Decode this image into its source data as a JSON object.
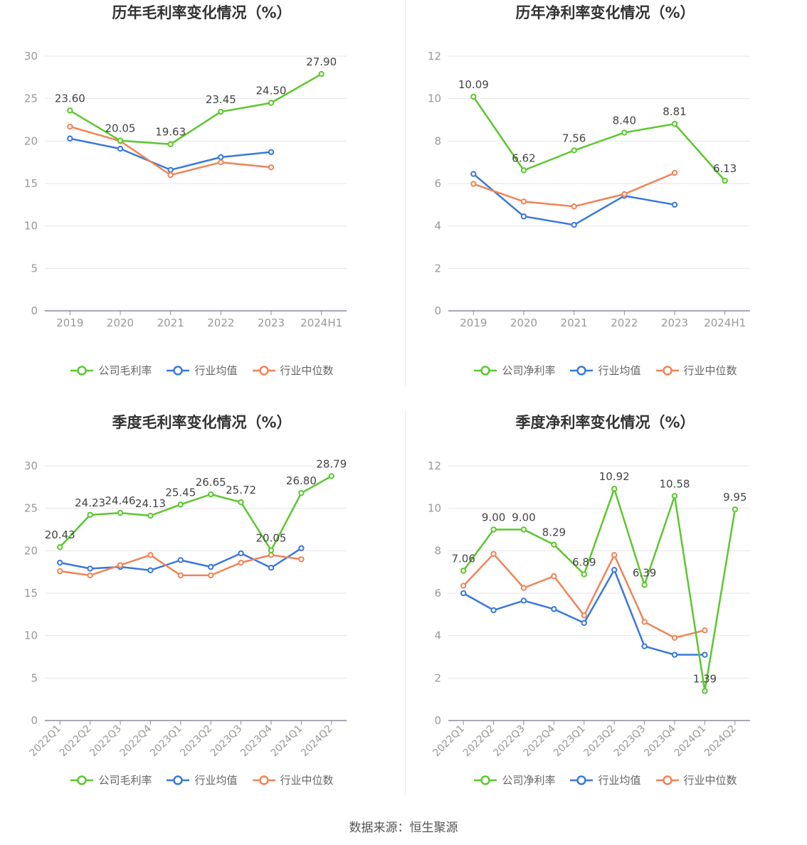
{
  "footer": "数据来源：恒生聚源",
  "colors": {
    "company": "#5cc72e",
    "avg": "#3a78dc",
    "median": "#f08457",
    "grid": "#e6e6ee",
    "axis": "#8c8ca0",
    "tick": "#999999",
    "label": "#444444"
  },
  "chart_data": [
    {
      "type": "line",
      "title": "历年毛利率变化情况（%）",
      "categories": [
        "2019",
        "2020",
        "2021",
        "2022",
        "2023",
        "2024H1"
      ],
      "ylim": [
        0,
        30
      ],
      "yticks": [
        0,
        5,
        10,
        15,
        20,
        25,
        30
      ],
      "grid": true,
      "legend_position": "bottom",
      "series": [
        {
          "name": "公司毛利率",
          "key": "company",
          "values": [
            23.6,
            20.05,
            19.63,
            23.45,
            24.5,
            27.9
          ],
          "labels": [
            "23.60",
            "20.05",
            "19.63",
            "23.45",
            "24.50",
            "27.90"
          ]
        },
        {
          "name": "行业均值",
          "key": "avg",
          "values": [
            20.3,
            19.1,
            16.6,
            18.1,
            18.7,
            null
          ]
        },
        {
          "name": "行业中位数",
          "key": "median",
          "values": [
            21.7,
            20.0,
            16.0,
            17.5,
            16.9,
            null
          ]
        }
      ]
    },
    {
      "type": "line",
      "title": "历年净利率变化情况（%）",
      "categories": [
        "2019",
        "2020",
        "2021",
        "2022",
        "2023",
        "2024H1"
      ],
      "ylim": [
        0,
        12
      ],
      "yticks": [
        0,
        2,
        4,
        6,
        8,
        10,
        12
      ],
      "grid": true,
      "legend_position": "bottom",
      "series": [
        {
          "name": "公司净利率",
          "key": "company",
          "values": [
            10.09,
            6.62,
            7.56,
            8.4,
            8.81,
            6.13
          ],
          "labels": [
            "10.09",
            "6.62",
            "7.56",
            "8.40",
            "8.81",
            "6.13"
          ]
        },
        {
          "name": "行业均值",
          "key": "avg",
          "values": [
            6.45,
            4.45,
            4.05,
            5.42,
            5.0,
            null
          ]
        },
        {
          "name": "行业中位数",
          "key": "median",
          "values": [
            5.98,
            5.15,
            4.92,
            5.5,
            6.5,
            null
          ]
        }
      ]
    },
    {
      "type": "line",
      "title": "季度毛利率变化情况（%）",
      "categories": [
        "2022Q1",
        "2022Q2",
        "2022Q3",
        "2022Q4",
        "2023Q1",
        "2023Q2",
        "2023Q3",
        "2023Q4",
        "2024Q1",
        "2024Q2"
      ],
      "ylim": [
        0,
        30
      ],
      "yticks": [
        0,
        5,
        10,
        15,
        20,
        25,
        30
      ],
      "grid": true,
      "legend_position": "bottom",
      "series": [
        {
          "name": "公司毛利率",
          "key": "company",
          "values": [
            20.43,
            24.23,
            24.46,
            24.13,
            25.45,
            26.65,
            25.72,
            20.05,
            26.8,
            28.79
          ],
          "labels": [
            "20.43",
            "24.23",
            "24.46",
            "24.13",
            "25.45",
            "26.65",
            "25.72",
            "20.05",
            "26.80",
            "28.79"
          ]
        },
        {
          "name": "行业均值",
          "key": "avg",
          "values": [
            18.6,
            17.9,
            18.1,
            17.7,
            18.9,
            18.1,
            19.7,
            18.0,
            20.3,
            null
          ]
        },
        {
          "name": "行业中位数",
          "key": "median",
          "values": [
            17.6,
            17.1,
            18.3,
            19.5,
            17.1,
            17.1,
            18.6,
            19.5,
            19.0,
            null
          ]
        }
      ]
    },
    {
      "type": "line",
      "title": "季度净利率变化情况（%）",
      "categories": [
        "2022Q1",
        "2022Q2",
        "2022Q3",
        "2022Q4",
        "2023Q1",
        "2023Q2",
        "2023Q3",
        "2023Q4",
        "2024Q1",
        "2024Q2"
      ],
      "ylim": [
        0,
        12
      ],
      "yticks": [
        0,
        2,
        4,
        6,
        8,
        10,
        12
      ],
      "grid": true,
      "legend_position": "bottom",
      "series": [
        {
          "name": "公司净利率",
          "key": "company",
          "values": [
            7.06,
            9.0,
            9.0,
            8.29,
            6.89,
            10.92,
            6.39,
            10.58,
            1.39,
            9.95
          ],
          "labels": [
            "7.06",
            "9.00",
            "9.00",
            "8.29",
            "6.89",
            "10.92",
            "6.39",
            "10.58",
            "1.39",
            "9.95"
          ]
        },
        {
          "name": "行业均值",
          "key": "avg",
          "values": [
            6.0,
            5.2,
            5.65,
            5.25,
            4.6,
            7.1,
            3.5,
            3.1,
            3.1,
            null
          ]
        },
        {
          "name": "行业中位数",
          "key": "median",
          "values": [
            6.35,
            7.85,
            6.25,
            6.8,
            4.95,
            7.8,
            4.65,
            3.9,
            4.25,
            null
          ]
        }
      ]
    }
  ]
}
